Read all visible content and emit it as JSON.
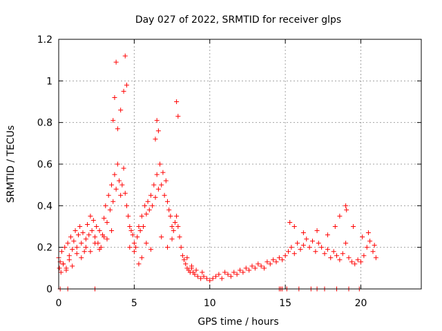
{
  "colors": {
    "series": "#ff0000",
    "axis": "#000000",
    "grid": "#a0a0a0"
  },
  "chart_data": {
    "type": "scatter",
    "title": "Day 027 of 2022, SRMTID for receiver glps",
    "xlabel": "GPS time / hours",
    "ylabel": "SRMTID / TECUs",
    "xlim": [
      0,
      24
    ],
    "ylim": [
      0,
      1.2
    ],
    "grid": true,
    "marker": "plus",
    "x_ticks": [
      0,
      5,
      10,
      15,
      20
    ],
    "x_tick_labels": [
      "0",
      "5",
      "10",
      "15",
      "20"
    ],
    "y_ticks": [
      0,
      0.2,
      0.4,
      0.6,
      0.8,
      1.0,
      1.2
    ],
    "y_tick_labels": [
      "0",
      "0.2",
      "0.4",
      "0.6",
      "0.8",
      "1",
      "1.2"
    ],
    "series": [
      {
        "name": "SRMTID",
        "x": [
          0.0,
          0.1,
          0.2,
          0.3,
          0.4,
          0.5,
          0.6,
          0.7,
          0.8,
          0.9,
          1.0,
          1.1,
          1.2,
          1.3,
          1.4,
          1.5,
          1.6,
          1.7,
          1.8,
          1.9,
          2.0,
          2.1,
          2.2,
          2.3,
          2.4,
          2.5,
          2.6,
          2.7,
          2.8,
          2.9,
          3.0,
          3.1,
          3.2,
          3.3,
          3.4,
          3.5,
          3.6,
          3.7,
          3.8,
          3.9,
          4.0,
          4.1,
          4.2,
          4.3,
          4.4,
          4.5,
          4.6,
          4.7,
          4.8,
          4.9,
          5.0,
          5.1,
          5.2,
          5.3,
          5.4,
          5.5,
          5.6,
          5.7,
          5.8,
          5.9,
          6.0,
          6.1,
          6.2,
          6.3,
          6.4,
          6.5,
          6.6,
          6.7,
          6.8,
          6.9,
          7.0,
          7.1,
          7.2,
          7.3,
          7.4,
          7.5,
          7.6,
          7.7,
          7.8,
          7.9,
          8.0,
          8.1,
          8.2,
          8.3,
          8.4,
          8.5,
          8.6,
          8.7,
          8.8,
          8.9,
          9.0,
          9.2,
          9.4,
          9.6,
          9.8,
          10.0,
          10.2,
          10.4,
          10.6,
          10.8,
          11.0,
          11.2,
          11.4,
          11.6,
          11.8,
          12.0,
          12.2,
          12.4,
          12.6,
          12.8,
          13.0,
          13.2,
          13.4,
          13.6,
          13.8,
          14.0,
          14.2,
          14.4,
          14.6,
          14.8,
          15.0,
          15.2,
          15.4,
          15.6,
          15.8,
          16.0,
          16.2,
          16.4,
          16.6,
          16.8,
          17.0,
          17.2,
          17.4,
          17.6,
          17.8,
          18.0,
          18.2,
          18.4,
          18.6,
          18.8,
          19.0,
          19.2,
          19.4,
          19.6,
          19.8,
          20.0,
          20.2,
          20.4,
          20.6,
          20.8,
          21.0,
          3.6,
          3.7,
          3.8,
          3.9,
          4.1,
          4.3,
          4.4,
          4.5,
          6.4,
          6.5,
          6.6,
          7.8,
          7.9,
          0.05,
          0.15,
          0.3,
          0.5,
          0.7,
          0.9,
          1.2,
          1.5,
          1.8,
          2.1,
          2.4,
          2.7,
          3.0,
          3.2,
          3.5,
          4.7,
          5.0,
          5.3,
          5.5,
          5.8,
          6.1,
          6.8,
          7.2,
          7.5,
          8.5,
          8.8,
          9.1,
          9.5,
          15.3,
          15.6,
          16.2,
          17.1,
          17.8,
          18.3,
          18.6,
          19.0,
          19.05,
          19.5,
          20.1,
          20.5,
          20.9,
          0.1,
          0.6,
          2.4,
          14.6,
          14.7,
          14.8,
          15.1,
          15.9,
          16.7,
          17.1,
          17.6,
          18.4,
          19.2,
          19.9
        ],
        "y": [
          0.15,
          0.13,
          0.18,
          0.12,
          0.2,
          0.1,
          0.22,
          0.16,
          0.25,
          0.19,
          0.23,
          0.28,
          0.2,
          0.26,
          0.3,
          0.22,
          0.27,
          0.18,
          0.24,
          0.31,
          0.26,
          0.35,
          0.28,
          0.33,
          0.25,
          0.3,
          0.22,
          0.28,
          0.2,
          0.26,
          0.34,
          0.4,
          0.32,
          0.45,
          0.38,
          0.5,
          0.42,
          0.55,
          0.48,
          0.6,
          0.52,
          0.45,
          0.5,
          0.58,
          0.46,
          0.4,
          0.35,
          0.3,
          0.28,
          0.26,
          0.22,
          0.2,
          0.25,
          0.3,
          0.28,
          0.35,
          0.3,
          0.4,
          0.36,
          0.42,
          0.38,
          0.45,
          0.4,
          0.5,
          0.44,
          0.55,
          0.48,
          0.6,
          0.5,
          0.56,
          0.45,
          0.52,
          0.42,
          0.38,
          0.35,
          0.3,
          0.28,
          0.32,
          0.35,
          0.3,
          0.25,
          0.2,
          0.16,
          0.14,
          0.12,
          0.1,
          0.09,
          0.08,
          0.1,
          0.08,
          0.07,
          0.06,
          0.05,
          0.06,
          0.05,
          0.04,
          0.05,
          0.06,
          0.07,
          0.05,
          0.08,
          0.07,
          0.06,
          0.08,
          0.07,
          0.09,
          0.08,
          0.1,
          0.09,
          0.11,
          0.1,
          0.12,
          0.11,
          0.1,
          0.13,
          0.12,
          0.14,
          0.13,
          0.15,
          0.14,
          0.16,
          0.18,
          0.2,
          0.17,
          0.22,
          0.19,
          0.21,
          0.24,
          0.2,
          0.23,
          0.18,
          0.22,
          0.2,
          0.17,
          0.19,
          0.15,
          0.18,
          0.16,
          0.14,
          0.17,
          0.22,
          0.15,
          0.13,
          0.12,
          0.14,
          0.13,
          0.16,
          0.2,
          0.23,
          0.18,
          0.15,
          0.81,
          0.92,
          1.09,
          0.77,
          0.86,
          0.95,
          1.12,
          0.98,
          0.72,
          0.81,
          0.76,
          0.9,
          0.83,
          0.1,
          0.08,
          0.12,
          0.09,
          0.14,
          0.11,
          0.17,
          0.15,
          0.2,
          0.18,
          0.22,
          0.19,
          0.25,
          0.24,
          0.28,
          0.2,
          0.18,
          0.12,
          0.15,
          0.22,
          0.19,
          0.25,
          0.2,
          0.24,
          0.15,
          0.11,
          0.09,
          0.08,
          0.32,
          0.3,
          0.27,
          0.28,
          0.26,
          0.3,
          0.35,
          0.4,
          0.38,
          0.3,
          0.25,
          0.27,
          0.21,
          0.0,
          0.0,
          0.0,
          0.0,
          0.0,
          0.0,
          0.0,
          0.0,
          0.0,
          0.0,
          0.0,
          0.0,
          0.0,
          0.0
        ]
      }
    ]
  }
}
